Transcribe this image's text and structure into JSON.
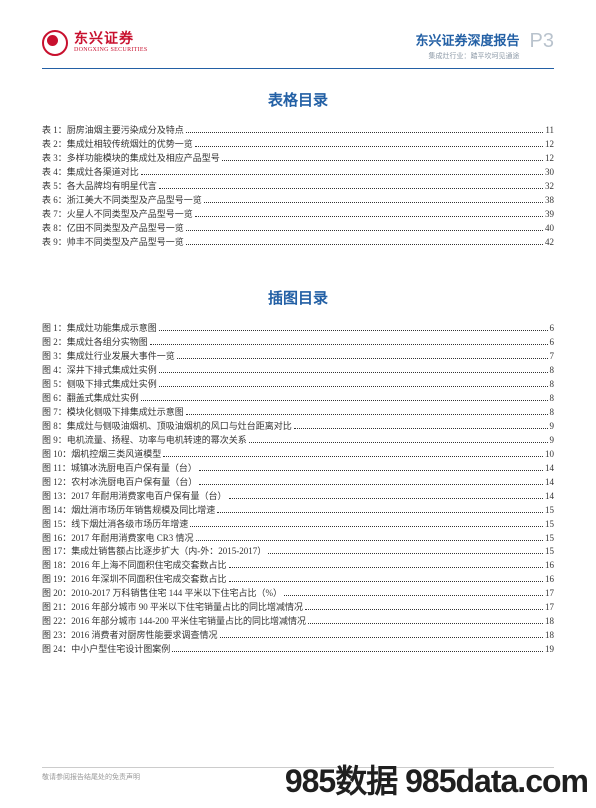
{
  "logo": {
    "cn": "东兴证券",
    "en": "DONGXING SECURITIES"
  },
  "header": {
    "report_title": "东兴证券深度报告",
    "report_sub": "集成灶行业：踏平坎坷见通途",
    "page_num": "P3"
  },
  "sections": {
    "tables_title": "表格目录",
    "figures_title": "插图目录"
  },
  "tables": [
    {
      "prefix": "表 1：",
      "text": "厨房油烟主要污染成分及特点",
      "page": "11"
    },
    {
      "prefix": "表 2：",
      "text": "集成灶相较传统烟灶的优势一览",
      "page": "12"
    },
    {
      "prefix": "表 3：",
      "text": "多样功能模块的集成灶及相应产品型号",
      "page": "12"
    },
    {
      "prefix": "表 4：",
      "text": "集成灶各渠道对比",
      "page": "30"
    },
    {
      "prefix": "表 5：",
      "text": "各大品牌均有明星代言",
      "page": "32"
    },
    {
      "prefix": "表 6：",
      "text": "浙江美大不同类型及产品型号一览",
      "page": "38"
    },
    {
      "prefix": "表 7：",
      "text": "火星人不同类型及产品型号一览",
      "page": "39"
    },
    {
      "prefix": "表 8：",
      "text": "亿田不同类型及产品型号一览",
      "page": "40"
    },
    {
      "prefix": "表 9：",
      "text": "帅丰不同类型及产品型号一览",
      "page": "42"
    }
  ],
  "figures": [
    {
      "prefix": "图 1：",
      "text": "集成灶功能集成示意图",
      "page": "6"
    },
    {
      "prefix": "图 2：",
      "text": "集成灶各组分实物图",
      "page": "6"
    },
    {
      "prefix": "图 3：",
      "text": "集成灶行业发展大事件一览",
      "page": "7"
    },
    {
      "prefix": "图 4：",
      "text": "深井下排式集成灶实例",
      "page": "8"
    },
    {
      "prefix": "图 5：",
      "text": "侧吸下排式集成灶实例",
      "page": "8"
    },
    {
      "prefix": "图 6：",
      "text": "翻盖式集成灶实例",
      "page": "8"
    },
    {
      "prefix": "图 7：",
      "text": "模块化侧吸下排集成灶示意图",
      "page": "8"
    },
    {
      "prefix": "图 8：",
      "text": "集成灶与侧吸油烟机、顶吸油烟机的风口与灶台距离对比",
      "page": "9"
    },
    {
      "prefix": "图 9：",
      "text": "电机流量、扬程、功率与电机转速的幂次关系",
      "page": "9"
    },
    {
      "prefix": "图 10：",
      "text": "烟机控烟三类风道模型",
      "page": "10"
    },
    {
      "prefix": "图 11：",
      "text": "城镇冰洗厨电百户保有量（台）",
      "page": "14"
    },
    {
      "prefix": "图 12：",
      "text": "农村冰洗厨电百户保有量（台）",
      "page": "14"
    },
    {
      "prefix": "图 13：",
      "text": "2017 年耐用消费家电百户保有量（台）",
      "page": "14"
    },
    {
      "prefix": "图 14：",
      "text": "烟灶消市场历年销售规模及同比增速",
      "page": "15"
    },
    {
      "prefix": "图 15：",
      "text": "线下烟灶消各级市场历年增速",
      "page": "15"
    },
    {
      "prefix": "图 16：",
      "text": "2017 年耐用消费家电 CR3 情况",
      "page": "15"
    },
    {
      "prefix": "图 17：",
      "text": "集成灶销售额占比逐步扩大（内-外：2015-2017）",
      "page": "15"
    },
    {
      "prefix": "图 18：",
      "text": "2016 年上海不同面积住宅成交套数占比",
      "page": "16"
    },
    {
      "prefix": "图 19：",
      "text": "2016 年深圳不同面积住宅成交套数占比",
      "page": "16"
    },
    {
      "prefix": "图 20：",
      "text": "2010-2017 万科销售住宅 144 平米以下住宅占比（%）",
      "page": "17"
    },
    {
      "prefix": "图 21：",
      "text": "2016 年部分城市 90 平米以下住宅销量占比的同比增减情况",
      "page": "17"
    },
    {
      "prefix": "图 22：",
      "text": "2016 年部分城市 144-200 平米住宅销量占比的同比增减情况",
      "page": "18"
    },
    {
      "prefix": "图 23：",
      "text": "2016 消费者对厨房性能要求调查情况",
      "page": "18"
    },
    {
      "prefix": "图 24：",
      "text": "中小户型住宅设计图案例",
      "page": "19"
    }
  ],
  "footer": {
    "text": "敬请参阅报告结尾处的免责声明"
  },
  "watermark": "985数据 985data.com",
  "colors": {
    "brand_red": "#c8102e",
    "brand_blue": "#2360a5",
    "muted": "#b9c3cd"
  }
}
